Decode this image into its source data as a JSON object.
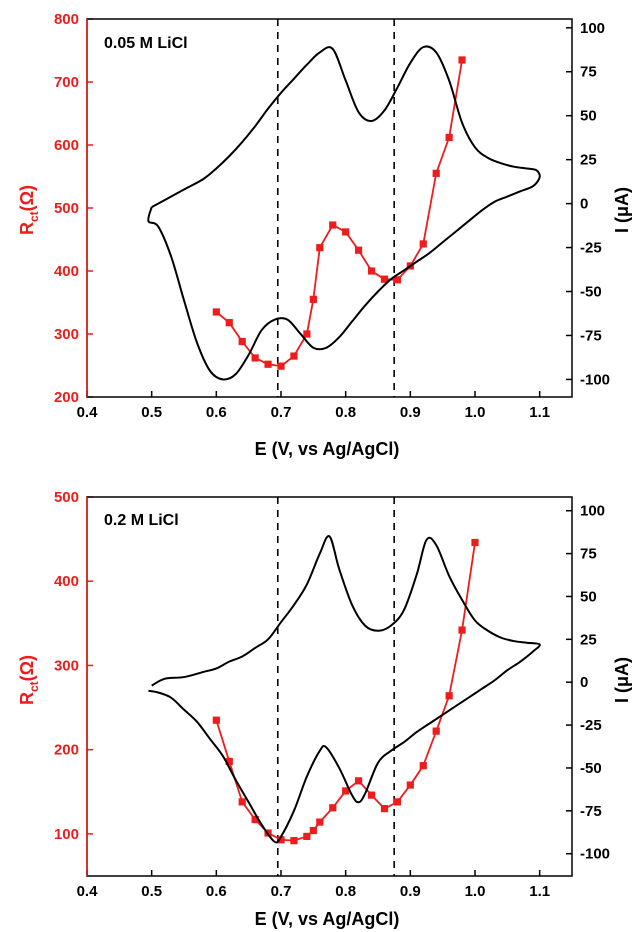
{
  "chart_data": [
    {
      "type": "line",
      "title": "0.05 M LiCl",
      "xlabel": "E (V, vs Ag/AgCl)",
      "ylabel_left_main": "R",
      "ylabel_left_sub": "ct",
      "ylabel_left_unit": "(Ω)",
      "ylabel_right": "I (μA)",
      "xlim": [
        0.4,
        1.15
      ],
      "ylim_left": [
        200,
        800
      ],
      "ylim_right": [
        -110,
        105
      ],
      "x_ticks": [
        "0.4",
        "0.5",
        "0.6",
        "0.7",
        "0.8",
        "0.9",
        "1.0",
        "1.1"
      ],
      "y_left_ticks": [
        "200",
        "300",
        "400",
        "500",
        "600",
        "700",
        "800"
      ],
      "y_right_ticks": [
        "-100",
        "-75",
        "-50",
        "-25",
        "0",
        "25",
        "50",
        "75",
        "100"
      ],
      "vlines": [
        0.695,
        0.875
      ],
      "series": [
        {
          "role": "rct",
          "axis": "left",
          "color": "#ee1c1c",
          "x": [
            0.6,
            0.62,
            0.64,
            0.66,
            0.68,
            0.7,
            0.72,
            0.74,
            0.75,
            0.76,
            0.78,
            0.8,
            0.82,
            0.84,
            0.86,
            0.88,
            0.9,
            0.92,
            0.94,
            0.96,
            0.98
          ],
          "y": [
            335,
            318,
            288,
            262,
            252,
            249,
            265,
            300,
            355,
            437,
            473,
            462,
            433,
            400,
            387,
            386,
            408,
            443,
            555,
            612,
            735
          ]
        },
        {
          "role": "cv",
          "axis": "right",
          "color": "#000000",
          "x": [
            0.5,
            0.52,
            0.55,
            0.58,
            0.6,
            0.62,
            0.64,
            0.66,
            0.68,
            0.7,
            0.72,
            0.74,
            0.76,
            0.78,
            0.8,
            0.82,
            0.84,
            0.86,
            0.88,
            0.9,
            0.92,
            0.94,
            0.96,
            0.98,
            1.0,
            1.02,
            1.04,
            1.06,
            1.08,
            1.095,
            1.1,
            1.09,
            1.07,
            1.05,
            1.03,
            1.01,
            0.99,
            0.97,
            0.95,
            0.93,
            0.91,
            0.89,
            0.87,
            0.85,
            0.83,
            0.81,
            0.79,
            0.77,
            0.75,
            0.73,
            0.71,
            0.69,
            0.67,
            0.65,
            0.63,
            0.61,
            0.59,
            0.57,
            0.55,
            0.53,
            0.51,
            0.495,
            0.5
          ],
          "y": [
            -2,
            2,
            8,
            14,
            20,
            27,
            35,
            44,
            54,
            63,
            71,
            79,
            86,
            88,
            70,
            52,
            47,
            53,
            66,
            80,
            89,
            86,
            70,
            46,
            32,
            26,
            23,
            21,
            20,
            19,
            15,
            10,
            7,
            4,
            1,
            -4,
            -10,
            -16,
            -22,
            -28,
            -33,
            -38,
            -43,
            -50,
            -58,
            -67,
            -76,
            -82,
            -82,
            -74,
            -66,
            -66,
            -72,
            -86,
            -97,
            -100,
            -95,
            -79,
            -55,
            -30,
            -13,
            -10,
            -2
          ]
        }
      ]
    },
    {
      "type": "line",
      "title": "0.2 M LiCl",
      "xlabel": "E (V, vs Ag/AgCl)",
      "ylabel_left_main": "R",
      "ylabel_left_sub": "ct",
      "ylabel_left_unit": "(Ω)",
      "ylabel_right": "I (μA)",
      "xlim": [
        0.4,
        1.15
      ],
      "ylim_left": [
        50,
        500
      ],
      "ylim_right": [
        -113,
        108
      ],
      "x_ticks": [
        "0.4",
        "0.5",
        "0.6",
        "0.7",
        "0.8",
        "0.9",
        "1.0",
        "1.1"
      ],
      "y_left_ticks": [
        "100",
        "200",
        "300",
        "400",
        "500"
      ],
      "y_right_ticks": [
        "-100",
        "-75",
        "-50",
        "-25",
        "0",
        "25",
        "50",
        "75",
        "100"
      ],
      "vlines": [
        0.695,
        0.875
      ],
      "series": [
        {
          "role": "rct",
          "axis": "left",
          "color": "#ee1c1c",
          "x": [
            0.6,
            0.62,
            0.64,
            0.66,
            0.68,
            0.7,
            0.72,
            0.74,
            0.75,
            0.76,
            0.78,
            0.8,
            0.82,
            0.84,
            0.86,
            0.88,
            0.9,
            0.92,
            0.94,
            0.96,
            0.98,
            1.0
          ],
          "y": [
            235,
            186,
            138,
            117,
            101,
            93,
            92,
            97,
            104,
            114,
            131,
            151,
            163,
            146,
            130,
            138,
            158,
            181,
            222,
            264,
            342,
            446
          ]
        },
        {
          "role": "cv",
          "axis": "right",
          "color": "#000000",
          "x": [
            0.5,
            0.52,
            0.55,
            0.58,
            0.6,
            0.62,
            0.64,
            0.66,
            0.68,
            0.7,
            0.72,
            0.74,
            0.76,
            0.775,
            0.79,
            0.81,
            0.83,
            0.85,
            0.87,
            0.89,
            0.91,
            0.925,
            0.94,
            0.96,
            0.98,
            1.0,
            1.02,
            1.04,
            1.06,
            1.08,
            1.1,
            1.09,
            1.07,
            1.05,
            1.03,
            1.01,
            0.99,
            0.97,
            0.95,
            0.93,
            0.91,
            0.89,
            0.87,
            0.85,
            0.83,
            0.82,
            0.81,
            0.79,
            0.77,
            0.76,
            0.74,
            0.72,
            0.7,
            0.69,
            0.67,
            0.65,
            0.63,
            0.61,
            0.59,
            0.57,
            0.55,
            0.53,
            0.51,
            0.495
          ],
          "y": [
            -2,
            2,
            3,
            6,
            8,
            12,
            15,
            20,
            25,
            35,
            45,
            57,
            75,
            85,
            66,
            45,
            33,
            30,
            33,
            42,
            63,
            83,
            80,
            62,
            48,
            36,
            30,
            26,
            24,
            23,
            22,
            18,
            12,
            7,
            1,
            -4,
            -9,
            -14,
            -19,
            -24,
            -29,
            -35,
            -40,
            -47,
            -65,
            -70,
            -66,
            -50,
            -38,
            -40,
            -55,
            -75,
            -90,
            -93,
            -83,
            -70,
            -57,
            -43,
            -33,
            -23,
            -16,
            -9,
            -6,
            -5
          ]
        }
      ]
    }
  ]
}
